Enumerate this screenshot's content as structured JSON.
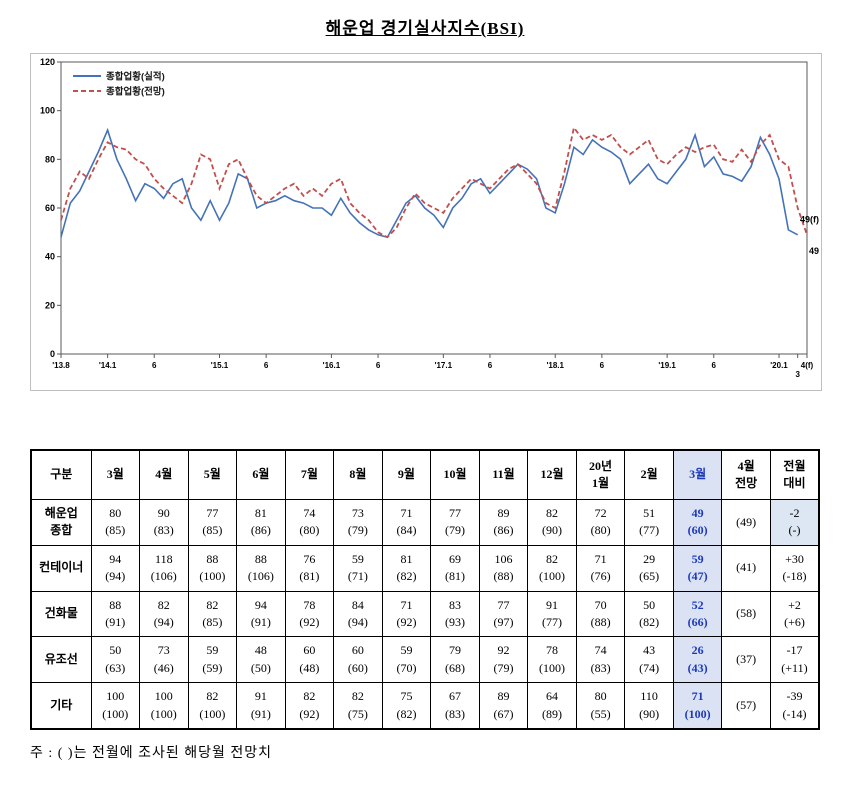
{
  "title": "해운업 경기실사지수(BSI)",
  "note": "주 : (    )는 전월에 조사된 해당월 전망치",
  "chart_data": {
    "type": "line",
    "title": "해운업 경기실사지수(BSI)",
    "ylim": [
      0,
      120
    ],
    "yticks": [
      0,
      20,
      40,
      60,
      80,
      100,
      120
    ],
    "xticks": [
      {
        "label": "'13.8",
        "index": 0,
        "row": 0
      },
      {
        "label": "'14.1",
        "index": 5,
        "row": 0
      },
      {
        "label": "6",
        "index": 10,
        "row": 0
      },
      {
        "label": "'15.1",
        "index": 17,
        "row": 0
      },
      {
        "label": "6",
        "index": 22,
        "row": 0
      },
      {
        "label": "'16.1",
        "index": 29,
        "row": 0
      },
      {
        "label": "6",
        "index": 34,
        "row": 0
      },
      {
        "label": "'17.1",
        "index": 41,
        "row": 0
      },
      {
        "label": "6",
        "index": 46,
        "row": 0
      },
      {
        "label": "'18.1",
        "index": 53,
        "row": 0
      },
      {
        "label": "6",
        "index": 58,
        "row": 0
      },
      {
        "label": "'19.1",
        "index": 65,
        "row": 0
      },
      {
        "label": "6",
        "index": 70,
        "row": 0
      },
      {
        "label": "'20.1",
        "index": 77,
        "row": 0
      },
      {
        "label": "3",
        "index": 79,
        "row": 1
      },
      {
        "label": "4(f)",
        "index": 80,
        "row": 0
      }
    ],
    "series": [
      {
        "name": "종합업황(실적)",
        "color": "#4472b8",
        "style": "solid",
        "values": [
          48,
          62,
          67,
          75,
          83,
          92,
          80,
          72,
          63,
          70,
          68,
          64,
          70,
          72,
          60,
          55,
          63,
          55,
          62,
          74,
          72,
          60,
          62,
          63,
          65,
          63,
          62,
          60,
          60,
          57,
          64,
          58,
          54,
          51,
          49,
          48,
          55,
          62,
          65,
          60,
          57,
          52,
          60,
          64,
          70,
          72,
          66,
          70,
          74,
          78,
          76,
          72,
          60,
          58,
          70,
          85,
          82,
          88,
          85,
          83,
          80,
          70,
          74,
          78,
          72,
          70,
          75,
          80,
          90,
          77,
          81,
          74,
          73,
          71,
          77,
          89,
          82,
          72,
          51,
          49,
          null
        ]
      },
      {
        "name": "종합업황(전망)",
        "color": "#c0504d",
        "style": "dashed",
        "values": [
          55,
          68,
          75,
          72,
          80,
          87,
          85,
          84,
          80,
          78,
          72,
          68,
          65,
          62,
          70,
          82,
          80,
          68,
          78,
          80,
          72,
          65,
          62,
          65,
          68,
          70,
          65,
          68,
          65,
          70,
          72,
          62,
          58,
          55,
          50,
          48,
          52,
          60,
          66,
          62,
          60,
          58,
          64,
          68,
          72,
          70,
          68,
          72,
          76,
          78,
          74,
          70,
          62,
          60,
          75,
          93,
          88,
          90,
          88,
          90,
          85,
          82,
          85,
          88,
          80,
          78,
          82,
          85,
          83,
          85,
          86,
          80,
          79,
          84,
          79,
          86,
          90,
          80,
          77,
          60,
          49
        ]
      }
    ],
    "annotations": [
      {
        "text": "49(f)",
        "index": 80,
        "value": 54
      },
      {
        "text": "49",
        "index": 80,
        "value": 41
      }
    ],
    "legend_position": "top-left",
    "grid": false
  },
  "table": {
    "col_headers": [
      "구분",
      "3월",
      "4월",
      "5월",
      "6월",
      "7월",
      "8월",
      "9월",
      "10월",
      "11월",
      "12월",
      "20년\n1월",
      "2월",
      "3월",
      "4월\n전망",
      "전월\n대비"
    ],
    "highlight_col": 13,
    "rows": [
      {
        "label": "해운업\n종합",
        "cells": [
          [
            "80",
            "(85)"
          ],
          [
            "90",
            "(83)"
          ],
          [
            "77",
            "(85)"
          ],
          [
            "81",
            "(86)"
          ],
          [
            "74",
            "(80)"
          ],
          [
            "73",
            "(79)"
          ],
          [
            "71",
            "(84)"
          ],
          [
            "77",
            "(79)"
          ],
          [
            "89",
            "(86)"
          ],
          [
            "82",
            "(90)"
          ],
          [
            "72",
            "(80)"
          ],
          [
            "51",
            "(77)"
          ],
          [
            "49",
            "(60)"
          ],
          [
            "(49)"
          ],
          [
            "-2",
            "(-)"
          ]
        ]
      },
      {
        "label": "컨테이너",
        "cells": [
          [
            "94",
            "(94)"
          ],
          [
            "118",
            "(106)"
          ],
          [
            "88",
            "(100)"
          ],
          [
            "88",
            "(106)"
          ],
          [
            "76",
            "(81)"
          ],
          [
            "59",
            "(71)"
          ],
          [
            "81",
            "(82)"
          ],
          [
            "69",
            "(81)"
          ],
          [
            "106",
            "(88)"
          ],
          [
            "82",
            "(100)"
          ],
          [
            "71",
            "(76)"
          ],
          [
            "29",
            "(65)"
          ],
          [
            "59",
            "(47)"
          ],
          [
            "(41)"
          ],
          [
            "+30",
            "(-18)"
          ]
        ]
      },
      {
        "label": "건화물",
        "cells": [
          [
            "88",
            "(91)"
          ],
          [
            "82",
            "(94)"
          ],
          [
            "82",
            "(85)"
          ],
          [
            "94",
            "(91)"
          ],
          [
            "78",
            "(92)"
          ],
          [
            "84",
            "(94)"
          ],
          [
            "71",
            "(92)"
          ],
          [
            "83",
            "(93)"
          ],
          [
            "77",
            "(97)"
          ],
          [
            "91",
            "(77)"
          ],
          [
            "70",
            "(88)"
          ],
          [
            "50",
            "(82)"
          ],
          [
            "52",
            "(66)"
          ],
          [
            "(58)"
          ],
          [
            "+2",
            "(+6)"
          ]
        ]
      },
      {
        "label": "유조선",
        "cells": [
          [
            "50",
            "(63)"
          ],
          [
            "73",
            "(46)"
          ],
          [
            "59",
            "(59)"
          ],
          [
            "48",
            "(50)"
          ],
          [
            "60",
            "(48)"
          ],
          [
            "60",
            "(60)"
          ],
          [
            "59",
            "(70)"
          ],
          [
            "79",
            "(68)"
          ],
          [
            "92",
            "(79)"
          ],
          [
            "78",
            "(100)"
          ],
          [
            "74",
            "(83)"
          ],
          [
            "43",
            "(74)"
          ],
          [
            "26",
            "(43)"
          ],
          [
            "(37)"
          ],
          [
            "-17",
            "(+11)"
          ]
        ]
      },
      {
        "label": "기타",
        "cells": [
          [
            "100",
            "(100)"
          ],
          [
            "100",
            "(100)"
          ],
          [
            "82",
            "(100)"
          ],
          [
            "91",
            "(91)"
          ],
          [
            "82",
            "(92)"
          ],
          [
            "82",
            "(75)"
          ],
          [
            "75",
            "(82)"
          ],
          [
            "67",
            "(83)"
          ],
          [
            "89",
            "(67)"
          ],
          [
            "64",
            "(89)"
          ],
          [
            "80",
            "(55)"
          ],
          [
            "110",
            "(90)"
          ],
          [
            "71",
            "(100)"
          ],
          [
            "(57)"
          ],
          [
            "-39",
            "(-14)"
          ]
        ]
      }
    ]
  }
}
